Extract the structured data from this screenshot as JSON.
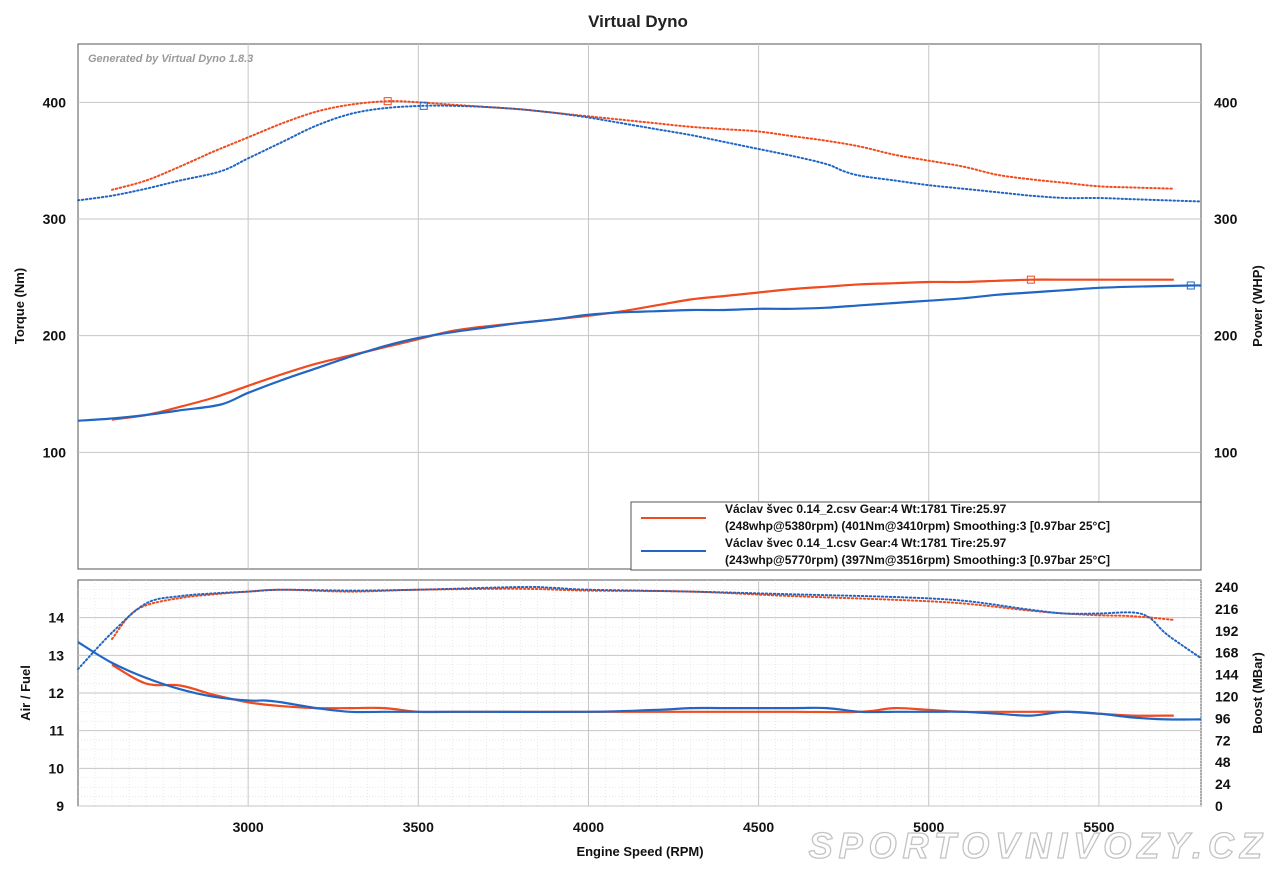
{
  "title": "Virtual Dyno",
  "generated_by": "Generated by Virtual Dyno 1.8.3",
  "watermark": "SPORTOVNIVOZY.CZ",
  "colors": {
    "run_2": "#f04a1e",
    "run_1": "#2166c4",
    "grid": "#c6c6c6",
    "grid_minor": "#dcdcdc"
  },
  "legend": [
    {
      "series": "run_2",
      "line1": "Václav švec 0.14_2.csv Gear:4 Wt:1781 Tire:25.97",
      "line2": "(248whp@5380rpm) (401Nm@3410rpm) Smoothing:3 [0.97bar 25°C]"
    },
    {
      "series": "run_1",
      "line1": "Václav švec 0.14_1.csv Gear:4 Wt:1781 Tire:25.97",
      "line2": "(243whp@5770rpm) (397Nm@3516rpm) Smoothing:3 [0.97bar 25°C]"
    }
  ],
  "chart_data": [
    {
      "type": "line",
      "panel": "upper",
      "title": "Virtual Dyno",
      "xlabel": "Engine Speed (RPM)",
      "ylabel_left": "Torque (Nm)",
      "ylabel_right": "Power (WHP)",
      "xlim": [
        2500,
        5800
      ],
      "ylim": [
        0,
        450
      ],
      "x_ticks": [
        3000,
        3500,
        4000,
        4500,
        5000,
        5500
      ],
      "y_ticks_left": [
        100,
        200,
        300,
        400
      ],
      "y_ticks_right": [
        100,
        200,
        300,
        400
      ],
      "grid": true,
      "legend_position": "bottom-right",
      "series": [
        {
          "id": "run_2_torque",
          "style": "dotted",
          "axis": "left",
          "x": [
            2600,
            2700,
            2800,
            2900,
            3000,
            3100,
            3200,
            3300,
            3410,
            3500,
            3600,
            3700,
            3800,
            3900,
            4000,
            4100,
            4200,
            4300,
            4400,
            4500,
            4600,
            4700,
            4800,
            4900,
            5000,
            5100,
            5200,
            5300,
            5400,
            5500,
            5600,
            5720
          ],
          "values": [
            325,
            333,
            345,
            358,
            370,
            382,
            392,
            398,
            401,
            400,
            398,
            396,
            394,
            391,
            388,
            385,
            382,
            379,
            377,
            375,
            371,
            367,
            362,
            355,
            350,
            345,
            338,
            334,
            331,
            328,
            327,
            326
          ]
        },
        {
          "id": "run_1_torque",
          "style": "dotted",
          "axis": "left",
          "x": [
            2500,
            2600,
            2700,
            2800,
            2920,
            3000,
            3100,
            3200,
            3300,
            3400,
            3516,
            3600,
            3700,
            3800,
            3900,
            4000,
            4100,
            4200,
            4300,
            4400,
            4500,
            4600,
            4700,
            4750,
            4800,
            4900,
            5000,
            5100,
            5200,
            5300,
            5400,
            5500,
            5600,
            5800
          ],
          "values": [
            316,
            320,
            326,
            333,
            341,
            352,
            366,
            380,
            390,
            395,
            397,
            397,
            396,
            394,
            391,
            387,
            382,
            377,
            372,
            366,
            360,
            354,
            347,
            341,
            337,
            333,
            329,
            326,
            323,
            320,
            318,
            318,
            317,
            315
          ]
        },
        {
          "id": "run_2_power",
          "style": "solid",
          "axis": "right",
          "x": [
            2600,
            2700,
            2800,
            2900,
            3000,
            3100,
            3200,
            3300,
            3400,
            3500,
            3600,
            3700,
            3800,
            3900,
            4000,
            4100,
            4200,
            4300,
            4400,
            4500,
            4600,
            4700,
            4800,
            4900,
            5000,
            5100,
            5200,
            5300,
            5380,
            5500,
            5600,
            5720
          ],
          "values": [
            128,
            132,
            139,
            147,
            157,
            167,
            176,
            183,
            190,
            197,
            204,
            208,
            211,
            214,
            217,
            221,
            226,
            231,
            234,
            237,
            240,
            242,
            244,
            245,
            246,
            246,
            247,
            248,
            248,
            248,
            248,
            248
          ]
        },
        {
          "id": "run_1_power",
          "style": "solid",
          "axis": "right",
          "x": [
            2500,
            2600,
            2700,
            2800,
            2920,
            3000,
            3100,
            3200,
            3300,
            3400,
            3500,
            3600,
            3700,
            3800,
            3900,
            4000,
            4100,
            4200,
            4300,
            4400,
            4500,
            4600,
            4700,
            4800,
            4900,
            5000,
            5100,
            5200,
            5300,
            5400,
            5500,
            5600,
            5770,
            5800
          ],
          "values": [
            127,
            129,
            132,
            136,
            141,
            151,
            162,
            172,
            182,
            191,
            198,
            203,
            207,
            211,
            214,
            218,
            220,
            221,
            222,
            222,
            223,
            223,
            224,
            226,
            228,
            230,
            232,
            235,
            237,
            239,
            241,
            242,
            243,
            243
          ]
        }
      ]
    },
    {
      "type": "line",
      "panel": "lower",
      "xlabel": "Engine Speed (RPM)",
      "ylabel_left": "Air / Fuel",
      "ylabel_right": "Boost (MBar)",
      "xlim": [
        2500,
        5800
      ],
      "ylim_left": [
        9,
        15
      ],
      "ylim_right": [
        0,
        240
      ],
      "x_ticks": [
        3000,
        3500,
        4000,
        4500,
        5000,
        5500
      ],
      "y_ticks_left": [
        9,
        10,
        11,
        12,
        13,
        14
      ],
      "y_ticks_right": [
        0,
        24,
        48,
        72,
        96,
        120,
        144,
        168,
        192,
        216,
        240
      ],
      "grid": true,
      "series": [
        {
          "id": "run_2_afr",
          "style": "solid",
          "axis": "left",
          "x": [
            2600,
            2700,
            2800,
            2900,
            3000,
            3100,
            3200,
            3300,
            3400,
            3500,
            3600,
            3800,
            4000,
            4200,
            4400,
            4600,
            4800,
            4900,
            5000,
            5100,
            5200,
            5300,
            5400,
            5500,
            5600,
            5720
          ],
          "values": [
            12.75,
            12.25,
            12.2,
            11.95,
            11.75,
            11.65,
            11.6,
            11.6,
            11.6,
            11.5,
            11.5,
            11.5,
            11.5,
            11.5,
            11.5,
            11.5,
            11.5,
            11.6,
            11.55,
            11.5,
            11.5,
            11.5,
            11.5,
            11.45,
            11.4,
            11.4
          ]
        },
        {
          "id": "run_1_afr",
          "style": "solid",
          "axis": "left",
          "x": [
            2500,
            2600,
            2700,
            2800,
            2900,
            3000,
            3050,
            3100,
            3200,
            3300,
            3400,
            3500,
            3700,
            4000,
            4200,
            4300,
            4400,
            4600,
            4700,
            4800,
            4900,
            5000,
            5100,
            5200,
            5300,
            5400,
            5500,
            5600,
            5700,
            5800
          ],
          "values": [
            13.35,
            12.8,
            12.4,
            12.1,
            11.9,
            11.8,
            11.8,
            11.75,
            11.6,
            11.5,
            11.5,
            11.5,
            11.5,
            11.5,
            11.55,
            11.6,
            11.6,
            11.6,
            11.6,
            11.5,
            11.5,
            11.5,
            11.5,
            11.45,
            11.4,
            11.5,
            11.45,
            11.35,
            11.3,
            11.3
          ]
        },
        {
          "id": "run_2_boost",
          "style": "dotted",
          "axis": "right",
          "x": [
            2600,
            2650,
            2700,
            2800,
            2900,
            3000,
            3100,
            3300,
            3500,
            3800,
            4000,
            4300,
            4600,
            4900,
            5100,
            5300,
            5400,
            5500,
            5600,
            5720
          ],
          "values": [
            183,
            208,
            220,
            228,
            232,
            235,
            237,
            235,
            237,
            238,
            236,
            235,
            230,
            226,
            222,
            214,
            211,
            209,
            208,
            204
          ]
        },
        {
          "id": "run_1_boost",
          "style": "dotted",
          "axis": "right",
          "x": [
            2500,
            2600,
            2700,
            2800,
            2900,
            3000,
            3100,
            3300,
            3500,
            3800,
            3900,
            4000,
            4300,
            4600,
            4900,
            5100,
            5300,
            5400,
            5500,
            5600,
            5650,
            5700,
            5800
          ],
          "values": [
            150,
            190,
            222,
            230,
            233,
            235,
            237,
            236,
            237,
            240,
            239,
            237,
            235,
            232,
            229,
            225,
            215,
            211,
            211,
            212,
            206,
            188,
            162
          ]
        }
      ]
    }
  ]
}
